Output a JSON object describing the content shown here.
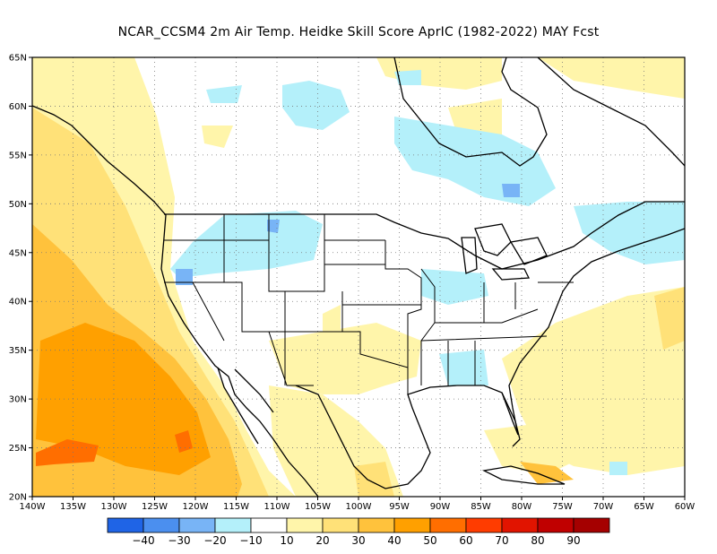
{
  "title": "NCAR_CCSM4  2m Air Temp. Heidke Skill Score AprIC (1982-2022) MAY Fcst",
  "map": {
    "lon_min": -140,
    "lon_max": -60,
    "lat_min": 20,
    "lat_max": 65,
    "lat_labels": [
      "20N",
      "25N",
      "30N",
      "35N",
      "40N",
      "45N",
      "50N",
      "55N",
      "60N",
      "65N"
    ],
    "lon_labels": [
      "140W",
      "135W",
      "130W",
      "125W",
      "120W",
      "115W",
      "110W",
      "105W",
      "100W",
      "95W",
      "90W",
      "85W",
      "80W",
      "75W",
      "70W",
      "65W",
      "60W"
    ]
  },
  "colorbar": {
    "colors": [
      "#1f64e6",
      "#4b8fef",
      "#78b4f6",
      "#b4f0fa",
      "#ffffff",
      "#fff5aa",
      "#ffe178",
      "#ffc23c",
      "#ffa000",
      "#ff6e00",
      "#ff3c00",
      "#e11400",
      "#c00000",
      "#a50000"
    ],
    "labels": [
      "−40",
      "−30",
      "−20",
      "−10",
      "10",
      "20",
      "30",
      "40",
      "50",
      "60",
      "70",
      "80",
      "90"
    ]
  }
}
